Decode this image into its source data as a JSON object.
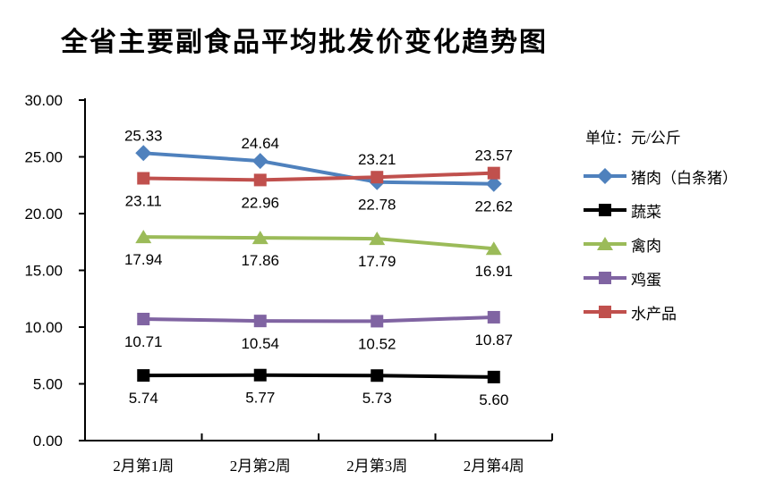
{
  "title": "全省主要副食品平均批发价变化趋势图",
  "chart_data": {
    "type": "line",
    "title": "全省主要副食品平均批发价变化趋势图",
    "unit_label": "单位：元/公斤",
    "xlabel": "",
    "ylabel": "",
    "grid": false,
    "legend_position": "right",
    "ylim": [
      0,
      30
    ],
    "yticks": [
      "30.00",
      "25.00",
      "20.00",
      "15.00",
      "10.00",
      "5.00",
      "0.00"
    ],
    "categories": [
      "2月第1周",
      "2月第2周",
      "2月第3周",
      "2月第4周"
    ],
    "series": [
      {
        "name": "猪肉（白条猪）",
        "color": "#4F81BD",
        "marker": "diamond",
        "values": [
          25.33,
          24.64,
          22.78,
          22.62
        ],
        "labels": [
          "25.33",
          "24.64",
          "22.78",
          "22.62"
        ],
        "label_position": [
          "above",
          "above",
          "below",
          "below"
        ]
      },
      {
        "name": "蔬菜",
        "color": "#000000",
        "marker": "square",
        "values": [
          5.74,
          5.77,
          5.73,
          5.6
        ],
        "labels": [
          "5.74",
          "5.77",
          "5.73",
          "5.60"
        ],
        "label_position": [
          "below",
          "below",
          "below",
          "below"
        ]
      },
      {
        "name": "禽肉",
        "color": "#9BBB59",
        "marker": "triangle",
        "values": [
          17.94,
          17.86,
          17.79,
          16.91
        ],
        "labels": [
          "17.94",
          "17.86",
          "17.79",
          "16.91"
        ],
        "label_position": [
          "below",
          "below",
          "below",
          "below"
        ]
      },
      {
        "name": "鸡蛋",
        "color": "#8064A2",
        "marker": "square",
        "values": [
          10.71,
          10.54,
          10.52,
          10.87
        ],
        "labels": [
          "10.71",
          "10.54",
          "10.52",
          "10.87"
        ],
        "label_position": [
          "below",
          "below",
          "below",
          "below"
        ]
      },
      {
        "name": "水产品",
        "color": "#C0504D",
        "marker": "square",
        "values": [
          23.11,
          22.96,
          23.21,
          23.57
        ],
        "labels": [
          "23.11",
          "22.96",
          "23.21",
          "23.57"
        ],
        "label_position": [
          "below",
          "below",
          "above",
          "above"
        ]
      }
    ]
  }
}
